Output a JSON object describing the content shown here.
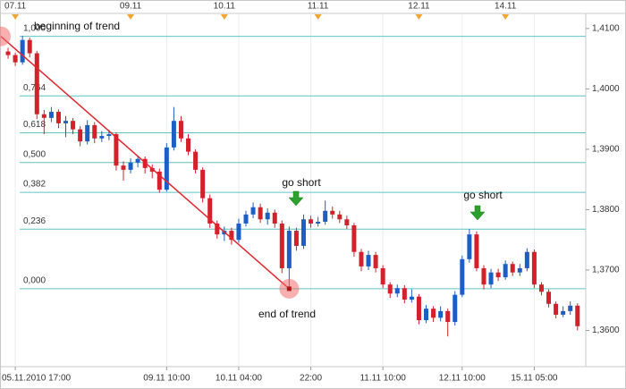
{
  "chart_data": {
    "type": "candlestick",
    "up_color": "#1c5fc4",
    "down_color": "#d3202b",
    "fib_color": "#5fc4c4",
    "trend_color": "#e0262e",
    "ylim": [
      1.354,
      1.4125
    ],
    "yticks": [
      {
        "value": 1.41,
        "label": "1,4100"
      },
      {
        "value": 1.4,
        "label": "1,4000"
      },
      {
        "value": 1.39,
        "label": "1,3900"
      },
      {
        "value": 1.38,
        "label": "1,3800"
      },
      {
        "value": 1.37,
        "label": "1,3700"
      },
      {
        "value": 1.36,
        "label": "1,3600"
      }
    ],
    "fib_high": 1.4087,
    "fib_low": 1.3669,
    "fib_levels": [
      {
        "value": 1,
        "label": "1,000"
      },
      {
        "value": 0.764,
        "label": "0,764"
      },
      {
        "value": 0.618,
        "label": "0,618"
      },
      {
        "value": 0.5,
        "label": "0,500"
      },
      {
        "value": 0.382,
        "label": "0,382"
      },
      {
        "value": 0.236,
        "label": "0,236"
      },
      {
        "value": 0,
        "label": "0,000"
      }
    ],
    "annotations": [
      "beginning of trend",
      "go short",
      "go short",
      "end of trend"
    ],
    "categories": [
      null,
      "05.11.2010 17:00",
      null,
      null,
      null,
      null,
      null,
      null,
      null,
      null,
      null,
      null,
      null,
      null,
      null,
      null,
      null,
      null,
      null,
      null,
      null,
      null,
      "09.11 10:00",
      null,
      null,
      null,
      null,
      null,
      null,
      null,
      null,
      null,
      "10.11 04:00",
      null,
      null,
      null,
      null,
      null,
      null,
      null,
      null,
      null,
      "22:00",
      null,
      null,
      null,
      null,
      null,
      null,
      null,
      null,
      null,
      "11.11 10:00",
      null,
      null,
      null,
      null,
      null,
      null,
      null,
      null,
      null,
      null,
      "12.11 10:00",
      null,
      null,
      null,
      null,
      null,
      null,
      null,
      null,
      null,
      "15.11 05:00",
      null,
      null,
      null,
      null,
      null,
      null
    ],
    "top_categories": [
      null,
      "07.11",
      null,
      null,
      null,
      null,
      null,
      null,
      null,
      null,
      null,
      null,
      null,
      null,
      null,
      null,
      null,
      "09.11",
      null,
      null,
      null,
      null,
      null,
      null,
      null,
      null,
      null,
      null,
      null,
      null,
      "10.11",
      null,
      null,
      null,
      null,
      null,
      null,
      null,
      null,
      null,
      null,
      null,
      null,
      "11.11",
      null,
      null,
      null,
      null,
      null,
      null,
      null,
      null,
      null,
      null,
      null,
      null,
      null,
      "12.11",
      null,
      null,
      null,
      null,
      null,
      null,
      null,
      null,
      null,
      null,
      null,
      "14.11",
      null,
      null,
      null,
      null,
      null,
      null,
      null,
      null,
      null,
      null
    ],
    "open": [
      1.4062,
      1.4056,
      1.4044,
      1.4081,
      1.4059,
      1.3958,
      1.3952,
      1.3962,
      1.3943,
      1.3947,
      1.3933,
      1.3913,
      1.394,
      1.3918,
      1.3922,
      1.3925,
      1.3873,
      1.3866,
      1.3878,
      1.3884,
      1.3869,
      1.3863,
      1.3833,
      1.3903,
      1.3947,
      1.3918,
      1.3896,
      1.3866,
      1.3819,
      1.3777,
      1.3759,
      1.3765,
      1.375,
      1.3777,
      1.3792,
      1.3804,
      1.3784,
      1.3795,
      1.3777,
      1.3703,
      1.3765,
      1.374,
      1.3784,
      1.3777,
      1.378,
      1.3798,
      1.3792,
      1.3784,
      1.3774,
      1.373,
      1.3706,
      1.3725,
      1.3703,
      1.3676,
      1.3661,
      1.367,
      1.3651,
      1.3656,
      1.3617,
      1.3636,
      1.3621,
      1.3632,
      1.3614,
      1.3659,
      1.3718,
      1.3759,
      1.3703,
      1.3676,
      1.3696,
      1.3688,
      1.371,
      1.3696,
      1.3703,
      1.373,
      1.3676,
      1.3664,
      1.3644,
      1.3626,
      1.3632,
      1.3641
    ],
    "high": [
      1.4068,
      1.406,
      1.4088,
      1.4085,
      1.4063,
      1.3965,
      1.397,
      1.3966,
      1.3955,
      1.3952,
      1.3938,
      1.3948,
      1.3945,
      1.393,
      1.3932,
      1.3928,
      1.388,
      1.3885,
      1.389,
      1.3888,
      1.3875,
      1.3868,
      1.391,
      1.397,
      1.3955,
      1.3925,
      1.39,
      1.387,
      1.3825,
      1.3782,
      1.3772,
      1.377,
      1.3785,
      1.3798,
      1.3812,
      1.381,
      1.3802,
      1.38,
      1.3782,
      1.3772,
      1.377,
      1.3792,
      1.379,
      1.3788,
      1.3815,
      1.3805,
      1.3798,
      1.379,
      1.3778,
      1.3735,
      1.3732,
      1.373,
      1.3708,
      1.368,
      1.3676,
      1.3675,
      1.3668,
      1.366,
      1.3642,
      1.364,
      1.364,
      1.3636,
      1.3665,
      1.3724,
      1.3768,
      1.3764,
      1.3708,
      1.3702,
      1.3702,
      1.3716,
      1.3714,
      1.371,
      1.3736,
      1.3734,
      1.368,
      1.3668,
      1.3648,
      1.364,
      1.3648,
      1.3645
    ],
    "low": [
      1.405,
      1.4038,
      1.404,
      1.4052,
      1.395,
      1.3925,
      1.3945,
      1.3935,
      1.392,
      1.3925,
      1.3905,
      1.3908,
      1.391,
      1.3912,
      1.3915,
      1.3865,
      1.3848,
      1.386,
      1.387,
      1.386,
      1.3852,
      1.3828,
      1.383,
      1.3898,
      1.3912,
      1.389,
      1.386,
      1.3812,
      1.377,
      1.3752,
      1.3748,
      1.3742,
      1.3745,
      1.3772,
      1.3786,
      1.3778,
      1.3775,
      1.377,
      1.3695,
      1.3669,
      1.3732,
      1.3735,
      1.377,
      1.3772,
      1.3775,
      1.3785,
      1.3778,
      1.3768,
      1.3722,
      1.3698,
      1.37,
      1.3696,
      1.367,
      1.3654,
      1.3655,
      1.3645,
      1.3646,
      1.361,
      1.3612,
      1.3614,
      1.3615,
      1.359,
      1.3608,
      1.3655,
      1.3712,
      1.3698,
      1.3668,
      1.367,
      1.3682,
      1.3684,
      1.369,
      1.369,
      1.3698,
      1.367,
      1.3658,
      1.3638,
      1.362,
      1.3622,
      1.3626,
      1.36
    ],
    "close": [
      1.4056,
      1.4044,
      1.4081,
      1.4059,
      1.3958,
      1.3952,
      1.3962,
      1.3943,
      1.3947,
      1.3933,
      1.3913,
      1.394,
      1.3918,
      1.3922,
      1.3925,
      1.3873,
      1.3866,
      1.3878,
      1.3884,
      1.3869,
      1.3863,
      1.3833,
      1.3903,
      1.3947,
      1.3918,
      1.3896,
      1.3866,
      1.3819,
      1.3777,
      1.3759,
      1.3765,
      1.375,
      1.3777,
      1.3792,
      1.3804,
      1.3784,
      1.3795,
      1.3777,
      1.3703,
      1.3765,
      1.374,
      1.3784,
      1.3777,
      1.378,
      1.3798,
      1.3792,
      1.3784,
      1.3774,
      1.373,
      1.3706,
      1.3725,
      1.3703,
      1.3676,
      1.3661,
      1.367,
      1.3651,
      1.3656,
      1.3617,
      1.3636,
      1.3621,
      1.3632,
      1.3614,
      1.3659,
      1.3718,
      1.3759,
      1.3703,
      1.3676,
      1.3696,
      1.3688,
      1.371,
      1.3696,
      1.3703,
      1.373,
      1.3676,
      1.3664,
      1.3644,
      1.3626,
      1.3632,
      1.3641,
      1.3607
    ]
  }
}
